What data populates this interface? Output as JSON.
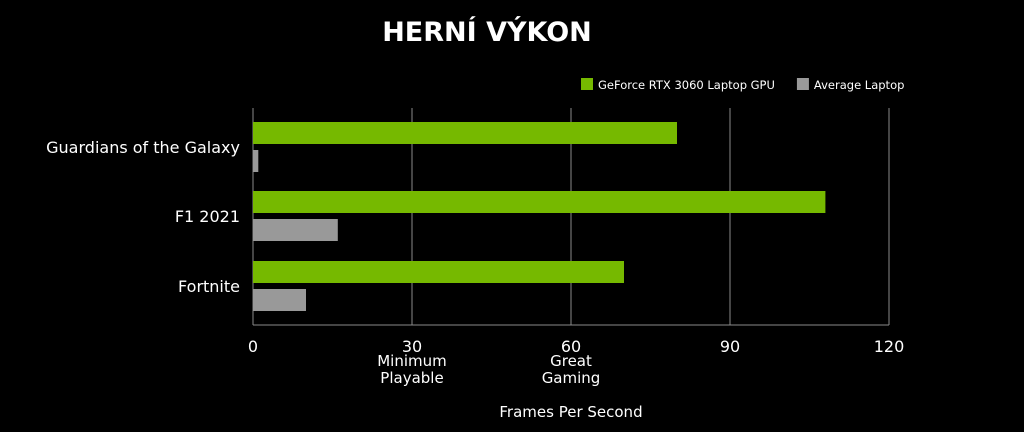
{
  "chart_data": {
    "type": "bar",
    "orientation": "horizontal",
    "title": "HERNÍ VÝKON",
    "xlabel": "Frames Per Second",
    "ylabel": "",
    "categories": [
      "Guardians of the Galaxy",
      "F1 2021",
      "Fortnite"
    ],
    "series": [
      {
        "name": "GeForce RTX 3060 Laptop GPU",
        "values": [
          80,
          108,
          70
        ],
        "color": "#76b900"
      },
      {
        "name": "Average Laptop",
        "values": [
          1,
          16,
          10
        ],
        "color": "#999999"
      }
    ],
    "xlim": [
      0,
      120
    ],
    "xticks": [
      {
        "value": 0,
        "label": "0",
        "sublabel": [
          "",
          ""
        ]
      },
      {
        "value": 30,
        "label": "30",
        "sublabel": [
          "Minimum",
          "Playable"
        ]
      },
      {
        "value": 60,
        "label": "60",
        "sublabel": [
          "Great",
          "Gaming"
        ]
      },
      {
        "value": 90,
        "label": "90",
        "sublabel": [
          "",
          ""
        ]
      },
      {
        "value": 120,
        "label": "120",
        "sublabel": [
          "",
          ""
        ]
      }
    ],
    "grid": true,
    "legend_position": "top-right",
    "background": "#000000"
  }
}
